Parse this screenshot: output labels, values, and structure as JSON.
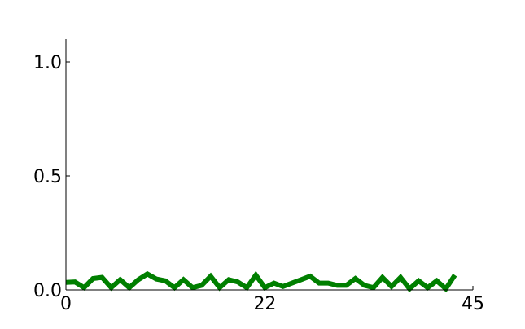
{
  "chart_data": {
    "type": "line",
    "title": "",
    "xlabel": "",
    "ylabel": "",
    "xlim": [
      0,
      45
    ],
    "ylim": [
      0,
      1.1
    ],
    "x_ticks": [
      0,
      22,
      45
    ],
    "x_tick_labels": [
      "0",
      "22",
      "45"
    ],
    "y_ticks": [
      0.0,
      0.5,
      1.0
    ],
    "y_tick_labels": [
      "0.0",
      "0.5",
      "1.0"
    ],
    "grid": false,
    "legend": "none",
    "series": [
      {
        "color": "#007f00",
        "x": [
          0,
          1,
          2,
          3,
          4,
          5,
          6,
          7,
          8,
          9,
          10,
          11,
          12,
          13,
          14,
          15,
          16,
          17,
          18,
          19,
          20,
          21,
          22,
          23,
          24,
          25,
          26,
          27,
          28,
          29,
          30,
          31,
          32,
          33,
          34,
          35,
          36,
          37,
          38,
          39,
          40,
          41,
          42,
          43
        ],
        "values": [
          0.033,
          0.035,
          0.01,
          0.05,
          0.055,
          0.01,
          0.045,
          0.01,
          0.045,
          0.07,
          0.048,
          0.04,
          0.01,
          0.045,
          0.01,
          0.02,
          0.06,
          0.01,
          0.045,
          0.035,
          0.01,
          0.065,
          0.01,
          0.03,
          0.015,
          0.03,
          0.045,
          0.06,
          0.03,
          0.03,
          0.02,
          0.02,
          0.05,
          0.02,
          0.01,
          0.055,
          0.015,
          0.055,
          0.005,
          0.04,
          0.01,
          0.04,
          0.005,
          0.065
        ]
      }
    ]
  }
}
